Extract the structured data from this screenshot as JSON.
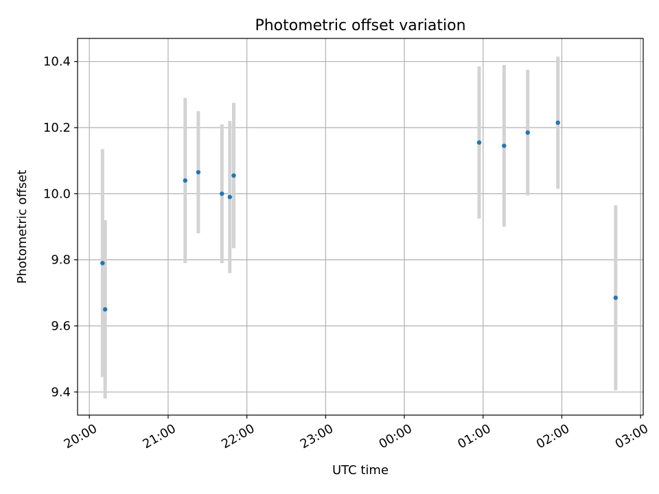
{
  "chart_data": {
    "type": "scatter",
    "title": "Photometric offset variation",
    "xlabel": "UTC time",
    "ylabel": "Photometric offset",
    "x_tick_labels": [
      "20:00",
      "21:00",
      "22:00",
      "23:00",
      "00:00",
      "01:00",
      "02:00",
      "03:00"
    ],
    "y_tick_labels": [
      "9.4",
      "9.6",
      "9.8",
      "10.0",
      "10.2",
      "10.4"
    ],
    "y_ticks": [
      9.4,
      9.6,
      9.8,
      10.0,
      10.2,
      10.4
    ],
    "xlim": [
      "19:51",
      "03:02"
    ],
    "ylim": [
      9.33,
      10.47
    ],
    "grid": true,
    "points": [
      {
        "time": "20:10",
        "y": 9.79,
        "err": 0.345
      },
      {
        "time": "20:12",
        "y": 9.65,
        "err": 0.27
      },
      {
        "time": "21:13",
        "y": 10.04,
        "err": 0.25
      },
      {
        "time": "21:23",
        "y": 10.065,
        "err": 0.185
      },
      {
        "time": "21:41",
        "y": 10.0,
        "err": 0.21
      },
      {
        "time": "21:47",
        "y": 9.99,
        "err": 0.23
      },
      {
        "time": "21:50",
        "y": 10.055,
        "err": 0.22
      },
      {
        "time": "00:57",
        "y": 10.155,
        "err": 0.23
      },
      {
        "time": "01:16",
        "y": 10.145,
        "err": 0.245
      },
      {
        "time": "01:34",
        "y": 10.185,
        "err": 0.19
      },
      {
        "time": "01:57",
        "y": 10.215,
        "err": 0.2
      },
      {
        "time": "02:41",
        "y": 9.685,
        "err": 0.28
      }
    ],
    "colors": {
      "point": "#1f77b4",
      "errorbar": "#d3d3d3",
      "grid": "#b0b0b0",
      "axes": "#000000"
    }
  }
}
